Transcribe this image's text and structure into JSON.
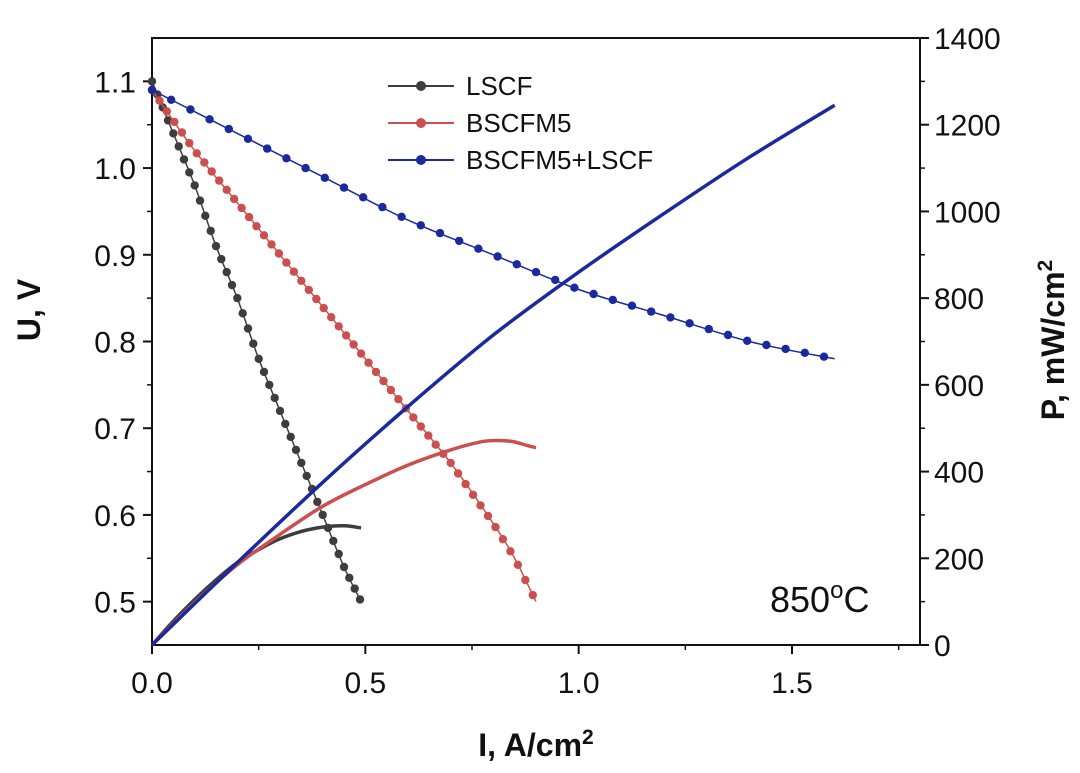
{
  "chart_data": {
    "type": "line",
    "xlabel": "I, A/cm",
    "xlabel_sup": "2",
    "ylabel_left": "U, V",
    "ylabel_right": "P, mW/cm",
    "ylabel_right_sup": "2",
    "annotation": {
      "text": "850",
      "sup": "o",
      "tail": "C"
    },
    "xlim": [
      0,
      1.8
    ],
    "ylim_left": [
      0.45,
      1.15
    ],
    "ylim_right": [
      0,
      1400
    ],
    "x_ticks": [
      0,
      0.5,
      1.0,
      1.5
    ],
    "x_tick_labels": [
      "0.0",
      "0.5",
      "1.0",
      "1.5"
    ],
    "y_left_ticks": [
      0.5,
      0.6,
      0.7,
      0.8,
      0.9,
      1.0,
      1.1
    ],
    "y_left_tick_labels": [
      "0.5",
      "0.6",
      "0.7",
      "0.8",
      "0.9",
      "1.0",
      "1.1"
    ],
    "y_right_ticks": [
      0,
      200,
      400,
      600,
      800,
      1000,
      1200,
      1400
    ],
    "y_right_tick_labels": [
      "0",
      "200",
      "400",
      "600",
      "800",
      "1000",
      "1200",
      "1400"
    ],
    "legend_position": "top-center",
    "series": [
      {
        "name": "LSCF",
        "color": "#3d3d3d",
        "voltage": {
          "x": [
            0,
            0.05,
            0.1,
            0.15,
            0.2,
            0.25,
            0.3,
            0.35,
            0.4,
            0.45,
            0.49
          ],
          "y": [
            1.1,
            1.04,
            0.98,
            0.91,
            0.85,
            0.78,
            0.72,
            0.66,
            0.6,
            0.54,
            0.5
          ]
        },
        "power": {
          "x": [
            0,
            0.05,
            0.1,
            0.15,
            0.2,
            0.25,
            0.3,
            0.35,
            0.4,
            0.45,
            0.49
          ],
          "y": [
            0,
            55,
            105,
            150,
            190,
            220,
            245,
            262,
            272,
            275,
            270
          ]
        }
      },
      {
        "name": "BSCFM5",
        "color": "#cc4f4f",
        "voltage": {
          "x": [
            0,
            0.1,
            0.2,
            0.3,
            0.4,
            0.5,
            0.6,
            0.7,
            0.8,
            0.85,
            0.9
          ],
          "y": [
            1.09,
            1.02,
            0.96,
            0.9,
            0.84,
            0.78,
            0.72,
            0.66,
            0.59,
            0.55,
            0.5
          ]
        },
        "power": {
          "x": [
            0,
            0.1,
            0.2,
            0.3,
            0.4,
            0.5,
            0.6,
            0.7,
            0.78,
            0.84,
            0.88,
            0.9
          ],
          "y": [
            0,
            98,
            185,
            255,
            320,
            370,
            415,
            450,
            470,
            470,
            460,
            455
          ]
        }
      },
      {
        "name": "BSCFM5+LSCF",
        "color": "#1a2a9e",
        "voltage": {
          "x": [
            0,
            0.2,
            0.4,
            0.6,
            0.8,
            1.0,
            1.2,
            1.4,
            1.6
          ],
          "y": [
            1.09,
            1.04,
            0.99,
            0.94,
            0.9,
            0.86,
            0.83,
            0.8,
            0.78
          ]
        },
        "power": {
          "x": [
            0,
            0.2,
            0.4,
            0.6,
            0.8,
            1.0,
            1.2,
            1.4,
            1.6
          ],
          "y": [
            0,
            190,
            375,
            550,
            715,
            860,
            995,
            1125,
            1245
          ]
        }
      }
    ]
  }
}
